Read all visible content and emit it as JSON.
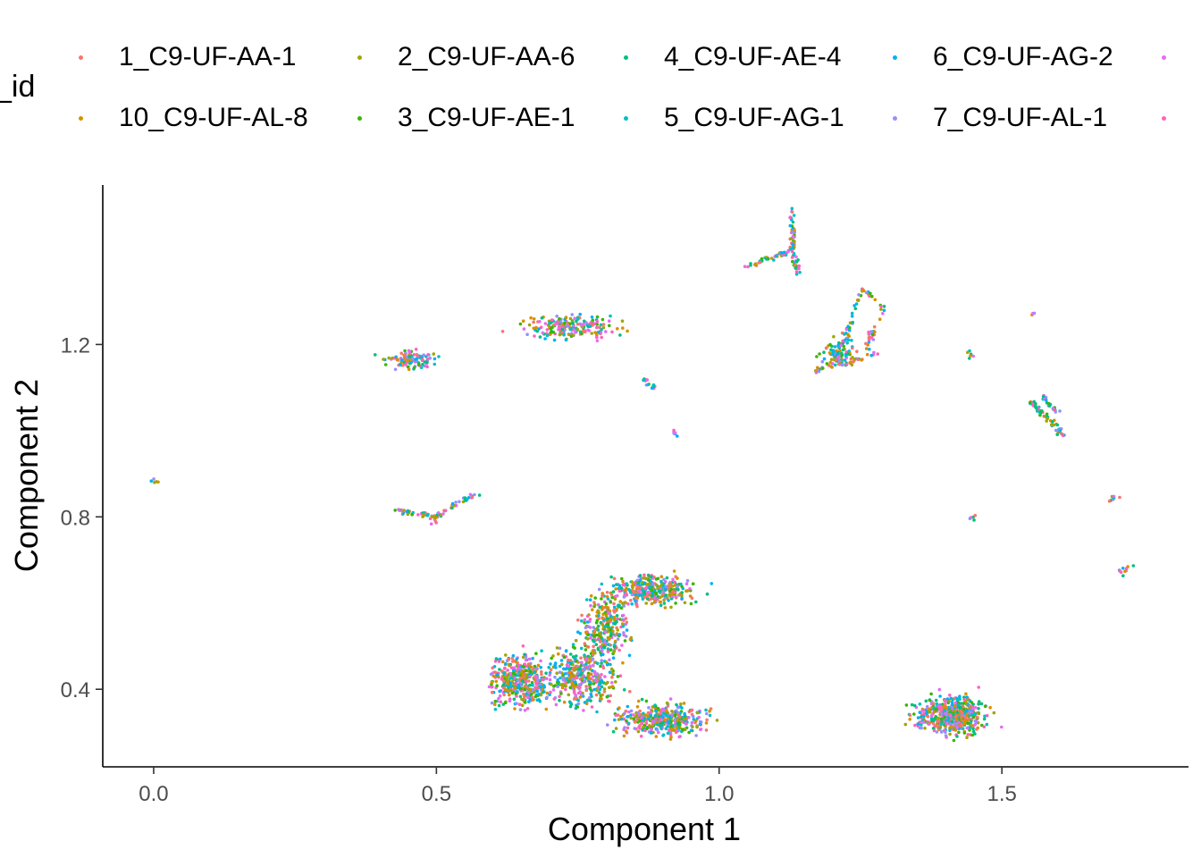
{
  "chart_data": {
    "type": "scatter",
    "xlabel": "Component 1",
    "ylabel": "Component 2",
    "xlim": [
      -0.09,
      1.83
    ],
    "ylim": [
      0.22,
      1.57
    ],
    "xticks": [
      0.0,
      0.5,
      1.0,
      1.5
    ],
    "xtick_labels": [
      "0.0",
      "0.5",
      "1.0",
      "1.5"
    ],
    "yticks": [
      0.4,
      0.8,
      1.2
    ],
    "ytick_labels": [
      "0.4",
      "0.8",
      "1.2"
    ],
    "grid": false,
    "legend_position": "top",
    "legend_title": "_id",
    "legend": [
      {
        "label": "1_C9-UF-AA-1",
        "color": "#F8766D"
      },
      {
        "label": "10_C9-UF-AL-8",
        "color": "#D89000"
      },
      {
        "label": "2_C9-UF-AA-6",
        "color": "#A3A500"
      },
      {
        "label": "3_C9-UF-AE-1",
        "color": "#39B600"
      },
      {
        "label": "4_C9-UF-AE-4",
        "color": "#00BF7D"
      },
      {
        "label": "5_C9-UF-AG-1",
        "color": "#00BFC4"
      },
      {
        "label": "6_C9-UF-AG-2",
        "color": "#00B0F6"
      },
      {
        "label": "7_C9-UF-AL-1",
        "color": "#9590FF"
      },
      {
        "label": "",
        "color": "#E76BF3"
      },
      {
        "label": "",
        "color": "#FF62BC"
      }
    ],
    "clusters": [
      {
        "kind": "blob",
        "cx": 0.455,
        "cy": 1.165,
        "rx": 0.04,
        "ry": 0.022,
        "n": 110
      },
      {
        "kind": "blob",
        "cx": 0.74,
        "cy": 1.238,
        "rx": 0.085,
        "ry": 0.026,
        "n": 200
      },
      {
        "kind": "blob",
        "cx": 0.65,
        "cy": 0.42,
        "rx": 0.05,
        "ry": 0.055,
        "n": 420
      },
      {
        "kind": "blob",
        "cx": 0.76,
        "cy": 0.43,
        "rx": 0.06,
        "ry": 0.07,
        "n": 380
      },
      {
        "kind": "blob",
        "cx": 0.9,
        "cy": 0.33,
        "rx": 0.07,
        "ry": 0.035,
        "n": 420
      },
      {
        "kind": "blob",
        "cx": 0.8,
        "cy": 0.55,
        "rx": 0.04,
        "ry": 0.07,
        "n": 260
      },
      {
        "kind": "blob",
        "cx": 0.88,
        "cy": 0.63,
        "rx": 0.07,
        "ry": 0.035,
        "n": 320
      },
      {
        "kind": "blob",
        "cx": 1.41,
        "cy": 0.34,
        "rx": 0.06,
        "ry": 0.045,
        "n": 520
      },
      {
        "kind": "line",
        "x0": 0.43,
        "y0": 0.815,
        "x1": 0.5,
        "y1": 0.8,
        "n": 35
      },
      {
        "kind": "line",
        "x0": 0.5,
        "y0": 0.8,
        "x1": 0.57,
        "y1": 0.855,
        "n": 35
      },
      {
        "kind": "line",
        "x0": 0.495,
        "y0": 0.78,
        "x1": 0.5,
        "y1": 0.81,
        "n": 10
      },
      {
        "kind": "line",
        "x0": 1.05,
        "y0": 1.38,
        "x1": 1.13,
        "y1": 1.42,
        "n": 45
      },
      {
        "kind": "line",
        "x0": 1.13,
        "y0": 1.42,
        "x1": 1.13,
        "y1": 1.51,
        "n": 40
      },
      {
        "kind": "line",
        "x0": 1.13,
        "y0": 1.42,
        "x1": 1.14,
        "y1": 1.36,
        "n": 25
      },
      {
        "kind": "line",
        "x0": 1.16,
        "y0": 1.13,
        "x1": 1.25,
        "y1": 1.2,
        "n": 30
      },
      {
        "kind": "line",
        "x0": 1.21,
        "y0": 1.16,
        "x1": 1.25,
        "y1": 1.33,
        "n": 45
      },
      {
        "kind": "line",
        "x0": 1.21,
        "y0": 1.15,
        "x1": 1.28,
        "y1": 1.18,
        "n": 25
      },
      {
        "kind": "line",
        "x0": 1.25,
        "y0": 1.33,
        "x1": 1.29,
        "y1": 1.29,
        "n": 15
      },
      {
        "kind": "line",
        "x0": 1.29,
        "y0": 1.29,
        "x1": 1.26,
        "y1": 1.19,
        "n": 25
      },
      {
        "kind": "blob",
        "cx": 1.21,
        "cy": 1.18,
        "rx": 0.03,
        "ry": 0.03,
        "n": 70
      },
      {
        "kind": "line",
        "x0": 1.55,
        "y0": 1.07,
        "x1": 1.61,
        "y1": 0.99,
        "n": 55
      },
      {
        "kind": "line",
        "x0": 1.57,
        "y0": 1.08,
        "x1": 1.6,
        "y1": 1.04,
        "n": 20
      },
      {
        "kind": "line",
        "x0": 0.865,
        "y0": 1.12,
        "x1": 0.885,
        "y1": 1.1,
        "n": 15
      },
      {
        "kind": "line",
        "x0": 0.915,
        "y0": 1.0,
        "x1": 0.925,
        "y1": 0.99,
        "n": 6
      },
      {
        "kind": "line",
        "x0": 1.44,
        "y0": 1.18,
        "x1": 1.45,
        "y1": 1.17,
        "n": 6
      },
      {
        "kind": "line",
        "x0": 1.55,
        "y0": 1.27,
        "x1": 1.555,
        "y1": 1.27,
        "n": 3
      },
      {
        "kind": "line",
        "x0": -0.002,
        "y0": 0.885,
        "x1": 0.004,
        "y1": 0.88,
        "n": 5
      },
      {
        "kind": "line",
        "x0": 1.445,
        "y0": 0.8,
        "x1": 1.455,
        "y1": 0.795,
        "n": 5
      },
      {
        "kind": "line",
        "x0": 1.69,
        "y0": 0.84,
        "x1": 1.71,
        "y1": 0.85,
        "n": 8
      },
      {
        "kind": "line",
        "x0": 1.71,
        "y0": 0.67,
        "x1": 1.73,
        "y1": 0.69,
        "n": 10
      }
    ]
  }
}
